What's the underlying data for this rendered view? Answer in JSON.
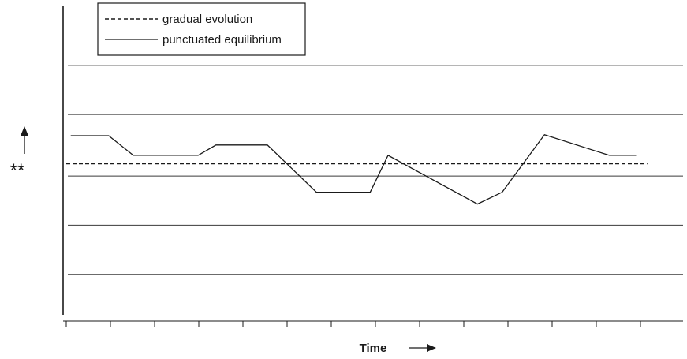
{
  "chart_data": {
    "type": "line",
    "title": "",
    "xlabel": "Time",
    "ylabel": "**",
    "x": [
      0,
      1,
      2,
      3,
      4,
      5,
      6,
      7,
      8,
      9,
      10,
      11,
      12,
      13
    ],
    "series": [
      {
        "name": "gradual evolution",
        "style": "dashed",
        "color": "#1a1a1a",
        "points": [
          [
            0.0,
            0.0
          ],
          [
            13.0,
            0.0
          ]
        ]
      },
      {
        "name": "punctuated equilibrium",
        "style": "solid",
        "color": "#1a1a1a",
        "points": [
          [
            0.1,
            0.57
          ],
          [
            0.95,
            0.57
          ],
          [
            1.5,
            0.17
          ],
          [
            2.95,
            0.17
          ],
          [
            3.35,
            0.38
          ],
          [
            4.5,
            0.38
          ],
          [
            5.6,
            -0.58
          ],
          [
            6.8,
            -0.58
          ],
          [
            7.2,
            0.17
          ],
          [
            9.2,
            -0.82
          ],
          [
            9.75,
            -0.58
          ],
          [
            10.7,
            0.59
          ],
          [
            12.15,
            0.17
          ],
          [
            12.75,
            0.17
          ]
        ]
      }
    ],
    "xlim": [
      0,
      13.8
    ],
    "ylim": [
      -3.2,
      3.2
    ],
    "horizontal_gridlines": [
      2.0,
      1.0,
      -0.25,
      -1.25,
      -2.25
    ],
    "grid": true,
    "legend_position": "top-left",
    "colors": {
      "ink": "#1a1a1a",
      "grid": "#3a3a3a",
      "background": "#ffffff"
    }
  }
}
